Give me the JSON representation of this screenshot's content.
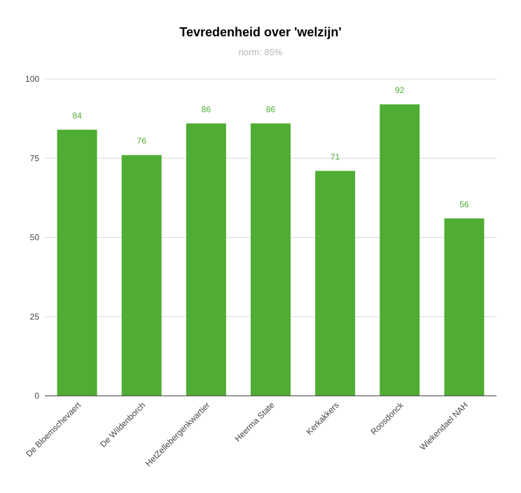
{
  "chart_data": {
    "type": "bar",
    "title": "Tevredenheid over 'welzijn'",
    "subtitle": "norm: 85%",
    "xlabel": "",
    "ylabel": "",
    "categories": [
      "De Bloemschevaert",
      "De Wildenborch",
      "HetZellebergenkwartier",
      "Heerma State",
      "Kerkakkers",
      "Roosdonck",
      "Wiekendael NAH"
    ],
    "values": [
      84,
      76,
      86,
      86,
      71,
      92,
      56
    ],
    "ylim": [
      0,
      100
    ],
    "yticks": [
      0,
      25,
      50,
      75,
      100
    ],
    "grid": true,
    "legend": "none",
    "bar_color": "#4fad33",
    "label_color": "#4fad33",
    "subtitle_color": "#b7b7b7"
  }
}
